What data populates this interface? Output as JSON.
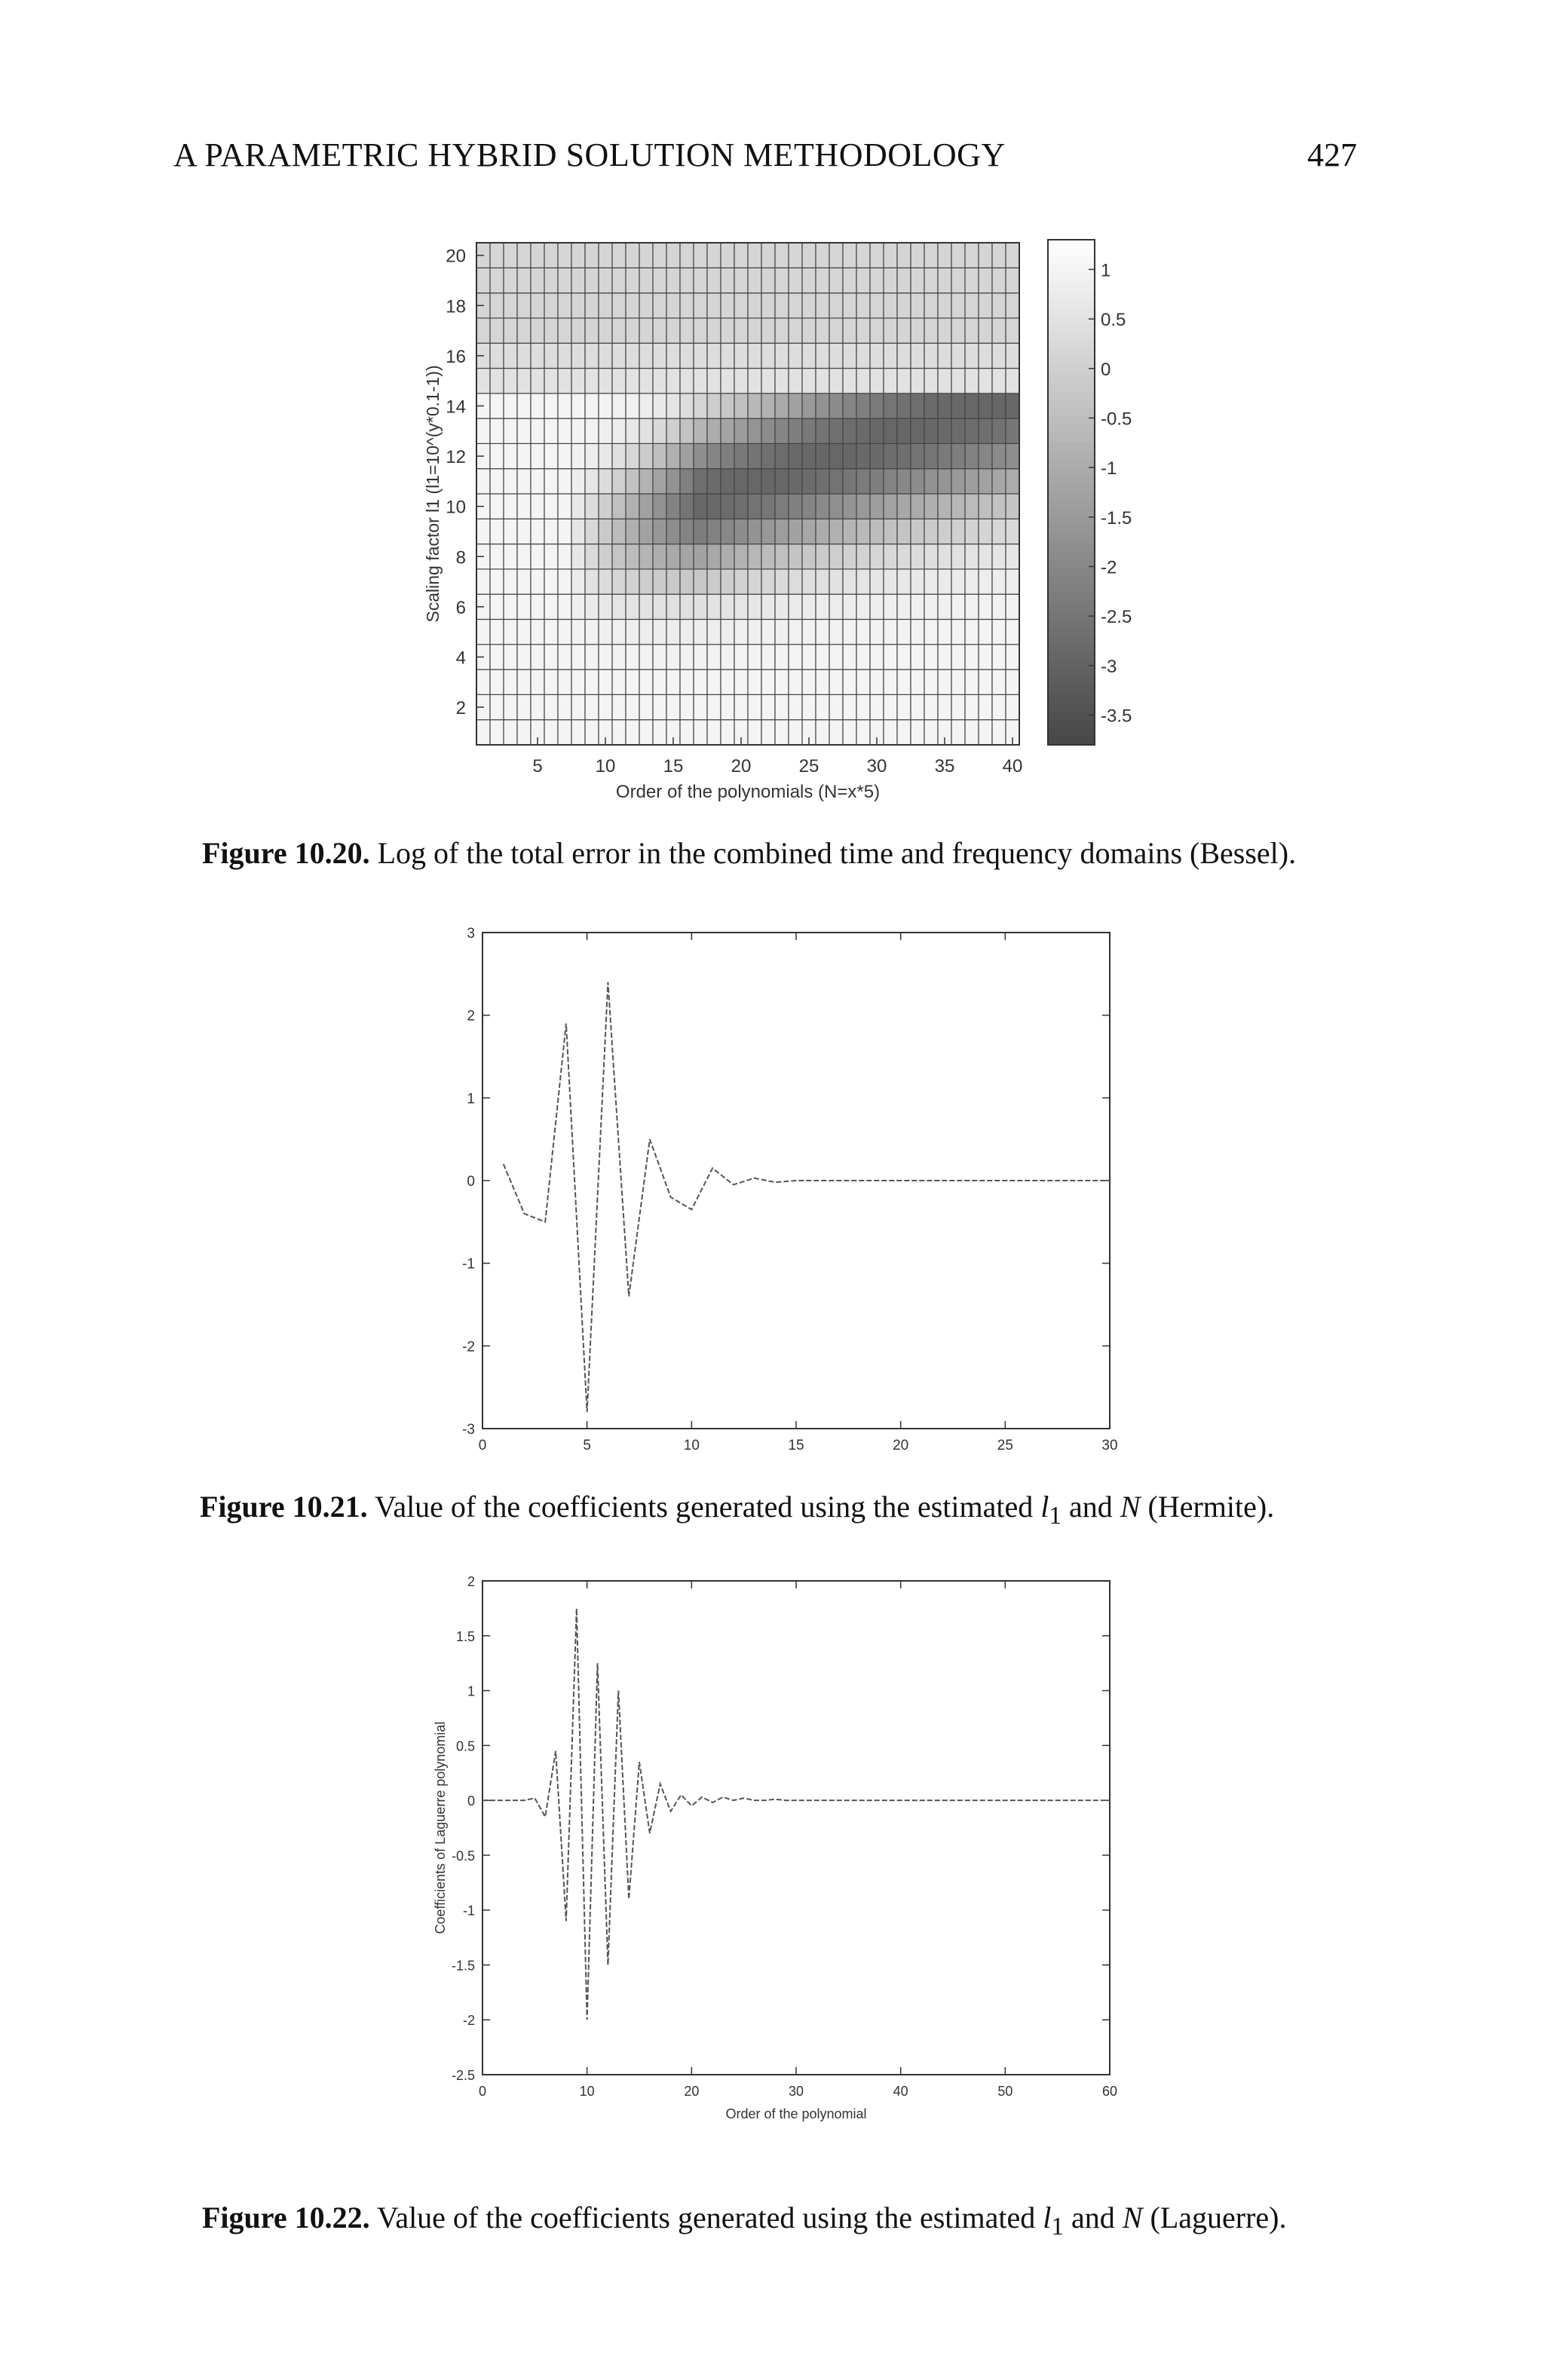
{
  "header": {
    "running_title": "A PARAMETRIC HYBRID SOLUTION METHODOLOGY",
    "page_number": "427"
  },
  "figures": [
    {
      "label": "Figure 10.20.",
      "text": "Log of the total error in the combined time and frequency domains (Bessel)."
    },
    {
      "label": "Figure 10.21.",
      "text_before": "Value of the coefficients generated using the estimated ",
      "var_l": "l",
      "sub": "1",
      "text_mid": " and ",
      "var_n": "N",
      "text_after": " (Hermite)."
    },
    {
      "label": "Figure 10.22.",
      "text_before": "Value of the coefficients generated using the estimated ",
      "var_l": "l",
      "sub": "1",
      "text_mid": " and ",
      "var_n": "N",
      "text_after": " (Laguerre)."
    }
  ],
  "chart_data": [
    {
      "type": "heatmap",
      "xlabel": "Order of the polynomials (N=x*5)",
      "ylabel": "Scaling factor l1 (l1=10^(y*0.1-1))",
      "xticks": [
        "5",
        "10",
        "15",
        "20",
        "25",
        "30",
        "35",
        "40"
      ],
      "yticks": [
        "2",
        "4",
        "6",
        "8",
        "10",
        "12",
        "14",
        "16",
        "18",
        "20"
      ],
      "xlim": [
        1,
        40
      ],
      "ylim": [
        1,
        20
      ],
      "colorbar_ticks": [
        "1",
        "0.5",
        "0",
        "-0.5",
        "-1",
        "-1.5",
        "-2",
        "-2.5",
        "-3",
        "-3.5"
      ],
      "colorbar_range": [
        -3.8,
        1.3
      ],
      "colormap": "gray",
      "grid": true,
      "description_of_values": "approximate log10 total error per (x, y) cell"
    },
    {
      "type": "line",
      "xticks": [
        "0",
        "5",
        "10",
        "15",
        "20",
        "25",
        "30"
      ],
      "yticks": [
        "3",
        "2",
        "1",
        "0",
        "-1",
        "-2",
        "-3"
      ],
      "xlim": [
        0,
        30
      ],
      "ylim": [
        -3,
        3
      ],
      "x": [
        1,
        2,
        3,
        4,
        5,
        6,
        7,
        8,
        9,
        10,
        11,
        12,
        13,
        14,
        15,
        16,
        17,
        18,
        19,
        20,
        21,
        22,
        23,
        24,
        25,
        26,
        27,
        28,
        29,
        30
      ],
      "values": [
        0.2,
        -0.4,
        -0.5,
        1.9,
        -2.8,
        2.4,
        -1.4,
        0.5,
        -0.2,
        -0.35,
        0.15,
        -0.05,
        0.03,
        -0.02,
        0.0,
        0.0,
        0.0,
        0.0,
        0.0,
        0.0,
        0.0,
        0.0,
        0.0,
        0.0,
        0.0,
        0.0,
        0.0,
        0.0,
        0.0,
        0.0
      ],
      "xlabel": "",
      "ylabel": ""
    },
    {
      "type": "line",
      "xticks": [
        "0",
        "10",
        "20",
        "30",
        "40",
        "50",
        "60"
      ],
      "yticks": [
        "2",
        "1.5",
        "1",
        "0.5",
        "0",
        "-0.5",
        "-1",
        "-1.5",
        "-2",
        "-2.5"
      ],
      "xlim": [
        0,
        60
      ],
      "ylim": [
        -2.5,
        2
      ],
      "x": [
        0,
        1,
        2,
        3,
        4,
        5,
        6,
        7,
        8,
        9,
        10,
        11,
        12,
        13,
        14,
        15,
        16,
        17,
        18,
        19,
        20,
        21,
        22,
        23,
        24,
        25,
        26,
        27,
        28,
        29,
        30,
        31,
        32,
        33,
        34,
        35,
        36,
        37,
        38,
        39,
        40,
        41,
        42,
        43,
        44,
        45,
        46,
        47,
        48,
        49,
        50,
        51,
        52,
        53,
        54,
        55,
        56,
        57,
        58,
        59,
        60
      ],
      "values": [
        0,
        0,
        0,
        0,
        0,
        0.02,
        -0.15,
        0.45,
        -1.1,
        1.75,
        -2.0,
        1.25,
        -1.5,
        1.0,
        -0.9,
        0.35,
        -0.3,
        0.15,
        -0.1,
        0.05,
        -0.05,
        0.03,
        -0.02,
        0.03,
        0.0,
        0.02,
        0.0,
        0.0,
        0.01,
        0.0,
        0.0,
        0,
        0,
        0,
        0,
        0,
        0,
        0,
        0,
        0,
        0,
        0,
        0,
        0,
        0,
        0,
        0,
        0,
        0,
        0,
        0,
        0,
        0,
        0,
        0,
        0,
        0,
        0,
        0,
        0,
        0
      ],
      "xlabel": "Order of the polynomial",
      "ylabel": "Coefficients of Laguerre polynomial"
    }
  ]
}
